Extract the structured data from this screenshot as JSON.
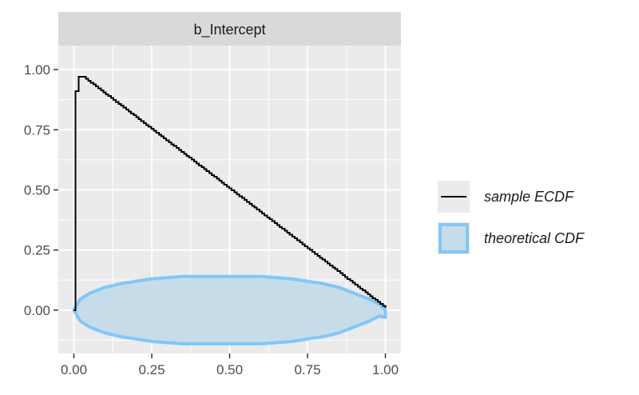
{
  "chart_data": {
    "type": "line",
    "facet_label": "b_Intercept",
    "xlim": [
      -0.05,
      1.05
    ],
    "ylim": [
      -0.18,
      1.1
    ],
    "x_ticks": [
      {
        "value": 0.0,
        "label": "0.00"
      },
      {
        "value": 0.25,
        "label": "0.25"
      },
      {
        "value": 0.5,
        "label": "0.50"
      },
      {
        "value": 0.75,
        "label": "0.75"
      },
      {
        "value": 1.0,
        "label": "1.00"
      }
    ],
    "y_ticks": [
      {
        "value": 0.0,
        "label": "0.00"
      },
      {
        "value": 0.25,
        "label": "0.25"
      },
      {
        "value": 0.5,
        "label": "0.50"
      },
      {
        "value": 0.75,
        "label": "0.75"
      },
      {
        "value": 1.0,
        "label": "1.00"
      }
    ],
    "grid": true,
    "legend_position": "right",
    "series": [
      {
        "name": "sample ECDF",
        "kind": "step",
        "color": "#000000",
        "points": [
          [
            0.0,
            0.0
          ],
          [
            0.005,
            0.91
          ],
          [
            0.015,
            0.97
          ],
          [
            0.03,
            0.97
          ],
          [
            1.0,
            0.01
          ]
        ]
      },
      {
        "name": "theoretical CDF",
        "kind": "band",
        "fill": "#c6dde9",
        "stroke": "#7ec8fb",
        "x": [
          0.0,
          0.02,
          0.05,
          0.1,
          0.15,
          0.2,
          0.25,
          0.3,
          0.35,
          0.4,
          0.45,
          0.5,
          0.55,
          0.6,
          0.65,
          0.7,
          0.75,
          0.8,
          0.85,
          0.9,
          0.95,
          0.98,
          1.0
        ],
        "upper": [
          0.0,
          0.045,
          0.07,
          0.095,
          0.11,
          0.12,
          0.13,
          0.135,
          0.14,
          0.14,
          0.14,
          0.14,
          0.14,
          0.14,
          0.135,
          0.13,
          0.12,
          0.11,
          0.095,
          0.07,
          0.045,
          0.025,
          0.0
        ],
        "lower": [
          0.0,
          -0.045,
          -0.07,
          -0.095,
          -0.11,
          -0.12,
          -0.13,
          -0.135,
          -0.14,
          -0.14,
          -0.14,
          -0.14,
          -0.14,
          -0.14,
          -0.135,
          -0.13,
          -0.12,
          -0.11,
          -0.095,
          -0.07,
          -0.045,
          -0.025,
          -0.03
        ]
      }
    ]
  }
}
